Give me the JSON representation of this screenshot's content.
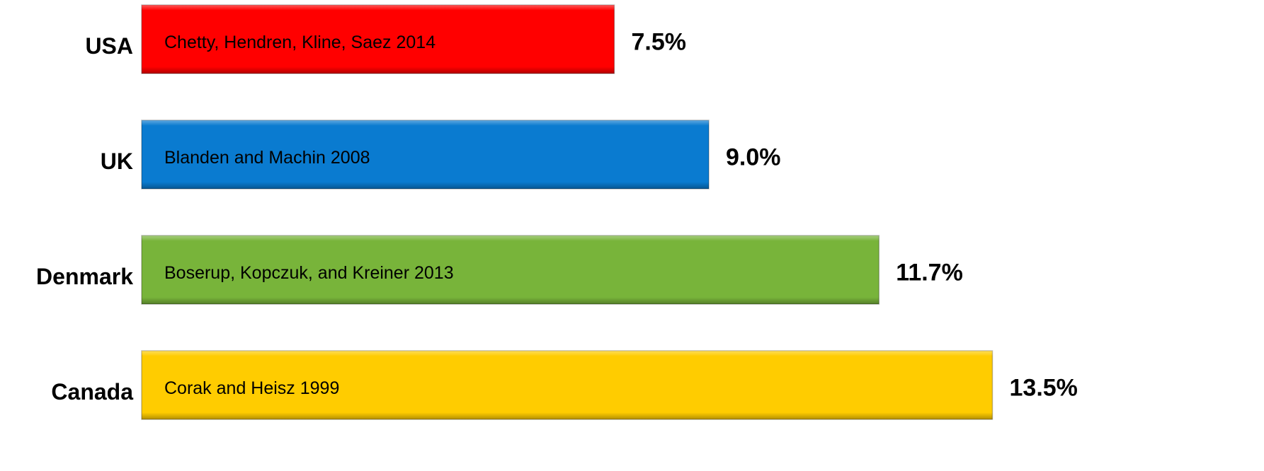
{
  "chart_data": {
    "type": "bar",
    "categories": [
      "USA",
      "UK",
      "Denmark",
      "Canada"
    ],
    "values": [
      7.5,
      9.0,
      11.7,
      13.5
    ],
    "value_labels": [
      "7.5%",
      "9.0%",
      "11.7%",
      "13.5%"
    ],
    "bar_labels": [
      "Chetty, Hendren, Kline, Saez 2014",
      "Blanden and Machin 2008",
      "Boserup, Kopczuk, and Kreiner 2013",
      "Corak and Heisz 1999"
    ],
    "colors": [
      "#ff0000",
      "#0a7bd0",
      "#78b43a",
      "#ffcc00"
    ]
  }
}
